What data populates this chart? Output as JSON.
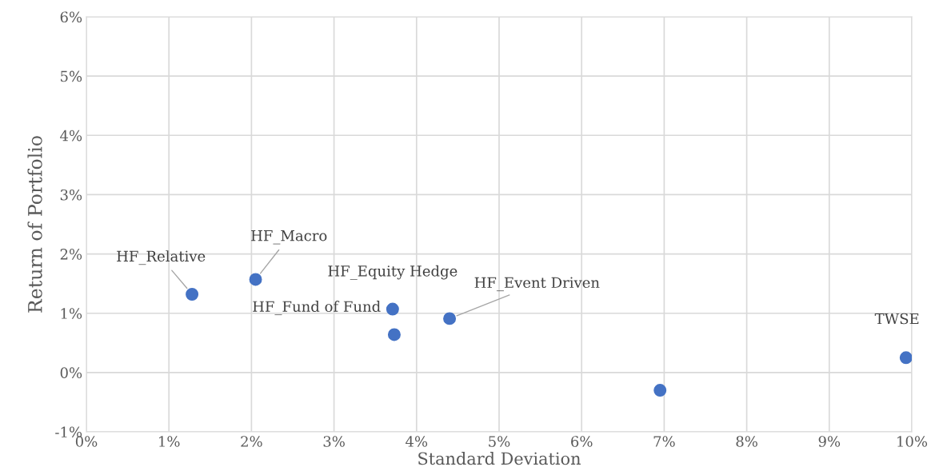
{
  "chart_data": {
    "type": "scatter",
    "xlabel": "Standard Deviation",
    "ylabel": "Return of Portfolio",
    "x": [
      1.28,
      2.05,
      3.71,
      3.73,
      4.4,
      6.95,
      9.93
    ],
    "series": [
      {
        "color": "#4472c4",
        "values": [
          1.32,
          1.57,
          1.07,
          0.64,
          0.91,
          -0.3,
          0.25
        ]
      }
    ],
    "xlim": [
      0,
      10
    ],
    "ylim": [
      -1,
      6
    ],
    "xticks": [
      {
        "value": 0,
        "label": "0%"
      },
      {
        "value": 1,
        "label": "1%"
      },
      {
        "value": 2,
        "label": "2%"
      },
      {
        "value": 3,
        "label": "3%"
      },
      {
        "value": 4,
        "label": "4%"
      },
      {
        "value": 5,
        "label": "5%"
      },
      {
        "value": 6,
        "label": "6%"
      },
      {
        "value": 7,
        "label": "7%"
      },
      {
        "value": 8,
        "label": "8%"
      },
      {
        "value": 9,
        "label": "9%"
      },
      {
        "value": 10,
        "label": "10%"
      }
    ],
    "yticks": [
      {
        "value": -1,
        "label": "-1%"
      },
      {
        "value": 0,
        "label": "0%"
      },
      {
        "value": 1,
        "label": "1%"
      },
      {
        "value": 2,
        "label": "2%"
      },
      {
        "value": 3,
        "label": "3%"
      },
      {
        "value": 4,
        "label": "4%"
      },
      {
        "value": 5,
        "label": "5%"
      },
      {
        "value": 6,
        "label": "6%"
      }
    ],
    "annotations": [
      {
        "text": "HF_Relative",
        "x": 1.28,
        "y": 1.32
      },
      {
        "text": "HF_Macro",
        "x": 2.05,
        "y": 1.57
      },
      {
        "text": "HF_Equity Hedge",
        "x": 3.71,
        "y": 1.07
      },
      {
        "text": "HF_Fund of Fund",
        "x": 3.73,
        "y": 0.64
      },
      {
        "text": "HF_Event Driven",
        "x": 4.4,
        "y": 0.91
      },
      {
        "text": "TWSE",
        "x": 9.93,
        "y": 0.25
      }
    ],
    "grid": true,
    "marker": "circle"
  }
}
